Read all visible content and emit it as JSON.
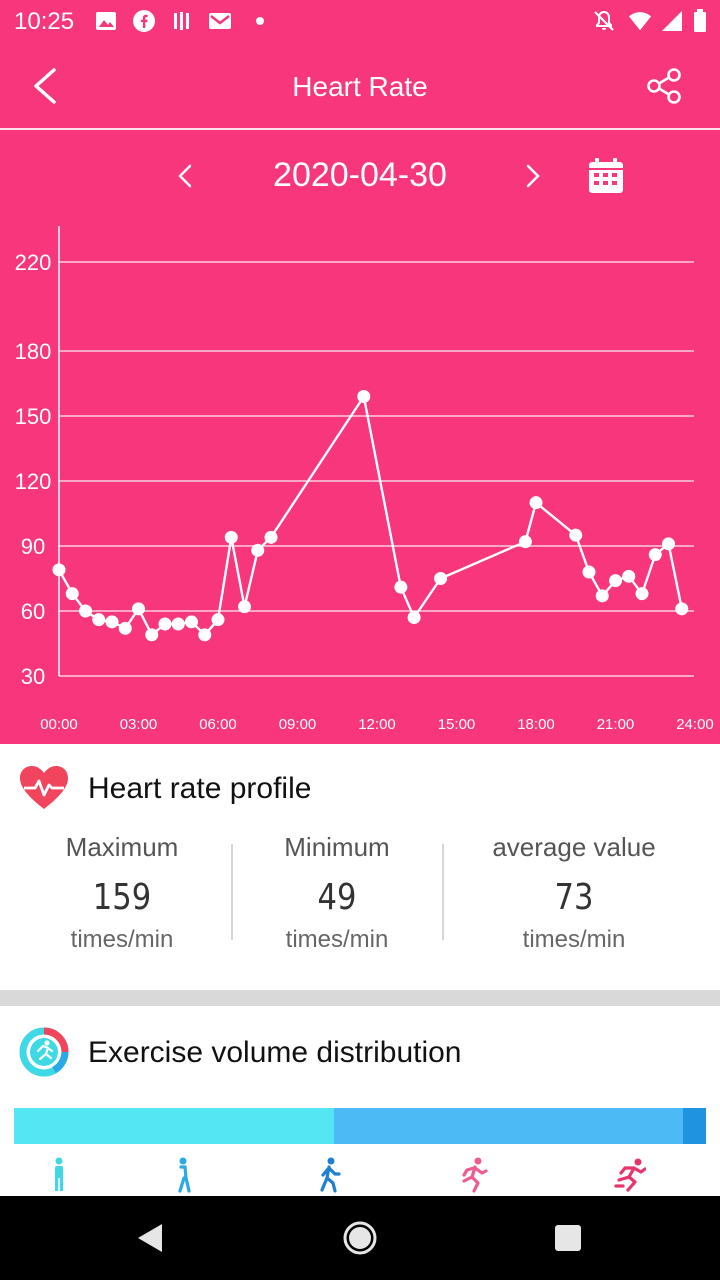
{
  "status_bar": {
    "time": "10:25",
    "icons": [
      "image-icon",
      "facebook-icon",
      "app-icon",
      "gmail-icon",
      "dot-icon",
      "mute-icon",
      "wifi-icon",
      "signal-icon",
      "battery-icon"
    ]
  },
  "app_bar": {
    "title": "Heart Rate",
    "back_icon": "back-arrow-icon",
    "share_icon": "share-icon"
  },
  "date_nav": {
    "date": "2020-04-30",
    "prev_icon": "chevron-left-icon",
    "next_icon": "chevron-right-icon",
    "calendar_icon": "calendar-icon"
  },
  "chart_data": {
    "type": "line",
    "title": "",
    "xlabel": "",
    "ylabel": "",
    "x_ticks": [
      "00:00",
      "03:00",
      "06:00",
      "09:00",
      "12:00",
      "15:00",
      "18:00",
      "21:00",
      "24:00"
    ],
    "y_ticks": [
      30,
      60,
      90,
      120,
      150,
      180,
      220
    ],
    "xlim": [
      0,
      24
    ],
    "ylim": [
      30,
      220
    ],
    "grid": true,
    "series": [
      {
        "x": [
          0.0,
          0.5,
          1.0,
          1.5,
          2.0,
          2.5,
          3.0,
          3.5,
          4.0,
          4.5,
          5.0,
          5.5,
          6.0,
          6.5,
          7.0,
          7.5,
          8.0,
          11.5,
          12.9,
          13.4,
          14.4,
          17.6,
          18.0,
          19.5,
          20.0,
          20.5,
          21.0,
          21.5,
          22.0,
          22.5,
          23.0,
          23.5
        ],
        "y": [
          79,
          68,
          60,
          56,
          55,
          52,
          61,
          49,
          54,
          54,
          55,
          49,
          56,
          94,
          62,
          88,
          94,
          159,
          71,
          57,
          75,
          92,
          110,
          95,
          78,
          67,
          74,
          76,
          68,
          86,
          91,
          61
        ]
      }
    ],
    "colors": {
      "background": "#f8367b",
      "line": "#ffffff",
      "grid": "#ffffff"
    }
  },
  "profile": {
    "title": "Heart rate profile",
    "icon": "heart-pulse-icon",
    "stats": [
      {
        "label": "Maximum",
        "value": "159",
        "unit": "times/min"
      },
      {
        "label": "Minimum",
        "value": "49",
        "unit": "times/min"
      },
      {
        "label": "average value",
        "value": "73",
        "unit": "times/min"
      }
    ]
  },
  "exercise": {
    "title": "Exercise volume distribution",
    "icon": "exercise-ring-icon",
    "distribution": [
      {
        "level": "resting",
        "fraction": 0.463,
        "color": "#54e6f3"
      },
      {
        "level": "light",
        "fraction": 0.504,
        "color": "#4cbbf5"
      },
      {
        "level": "moderate",
        "fraction": 0.033,
        "color": "#1f92e0"
      }
    ],
    "legend_icons": [
      "standing-person-icon",
      "walking-person-icon",
      "brisk-walk-icon",
      "running-person-icon",
      "sprinting-person-icon"
    ],
    "legend_colors": [
      "#3fd9e6",
      "#29a9e6",
      "#1f7fd0",
      "#f05a8f",
      "#e8336b"
    ]
  },
  "nav_bar": {
    "back": "nav-back-icon",
    "home": "nav-home-icon",
    "recents": "nav-recents-icon"
  },
  "theme": {
    "primary": "#f8367b",
    "heart_red": "#f0455d"
  }
}
